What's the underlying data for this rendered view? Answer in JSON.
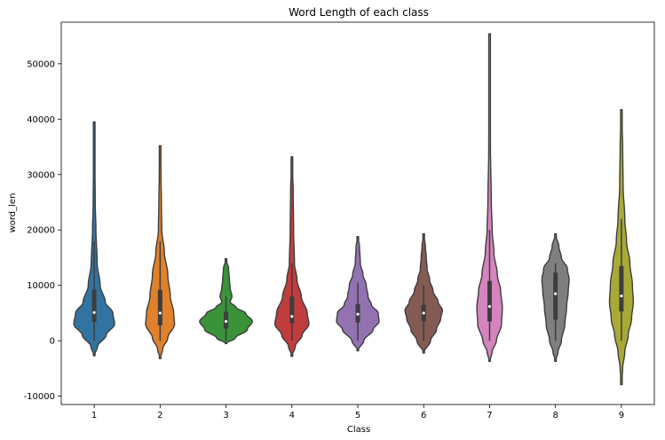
{
  "chart_data": {
    "type": "violin",
    "title": "Word Length of each class",
    "xlabel": "Class",
    "ylabel": "word_len",
    "ylim": [
      -11500,
      57500
    ],
    "yticks": [
      -10000,
      0,
      10000,
      20000,
      30000,
      40000,
      50000
    ],
    "grid": false,
    "categories": [
      "1",
      "2",
      "3",
      "4",
      "5",
      "6",
      "7",
      "8",
      "9"
    ],
    "colors": [
      "#3274a1",
      "#e1812c",
      "#3a923a",
      "#c03d3e",
      "#9372b2",
      "#845b53",
      "#d684bd",
      "#7f7f7f",
      "#a9aa35"
    ],
    "series": [
      {
        "category": "1",
        "min": -2700,
        "max": 39500,
        "q1": 3400,
        "median": 5100,
        "q3": 9200,
        "whisker_low": 0,
        "whisker_high": 18000,
        "profile": [
          [
            -2700,
            0
          ],
          [
            -1000,
            4
          ],
          [
            1000,
            14
          ],
          [
            3000,
            24
          ],
          [
            5000,
            22
          ],
          [
            7000,
            13
          ],
          [
            10000,
            7
          ],
          [
            14000,
            3.5
          ],
          [
            20000,
            2
          ],
          [
            25000,
            1.2
          ],
          [
            33000,
            0.8
          ],
          [
            39500,
            0
          ]
        ]
      },
      {
        "category": "2",
        "min": -3200,
        "max": 35200,
        "q1": 2800,
        "median": 5000,
        "q3": 9200,
        "whisker_low": 0,
        "whisker_high": 18000,
        "profile": [
          [
            -3200,
            0
          ],
          [
            -1500,
            3
          ],
          [
            500,
            9
          ],
          [
            3000,
            17
          ],
          [
            5000,
            16
          ],
          [
            8000,
            12
          ],
          [
            12000,
            9
          ],
          [
            16000,
            5
          ],
          [
            20000,
            2
          ],
          [
            25000,
            1.5
          ],
          [
            30000,
            1
          ],
          [
            35200,
            0
          ]
        ]
      },
      {
        "category": "3",
        "min": -500,
        "max": 14800,
        "q1": 2200,
        "median": 3500,
        "q3": 5200,
        "whisker_low": 0,
        "whisker_high": 8000,
        "profile": [
          [
            -500,
            0
          ],
          [
            500,
            11
          ],
          [
            2000,
            25
          ],
          [
            3500,
            31
          ],
          [
            5000,
            23
          ],
          [
            6000,
            12
          ],
          [
            7000,
            5
          ],
          [
            8000,
            7
          ],
          [
            9500,
            5
          ],
          [
            11000,
            4
          ],
          [
            13000,
            3
          ],
          [
            14800,
            0
          ]
        ]
      },
      {
        "category": "4",
        "min": -2800,
        "max": 33200,
        "q1": 3200,
        "median": 4400,
        "q3": 8000,
        "whisker_low": 0,
        "whisker_high": 14000,
        "profile": [
          [
            -2800,
            0
          ],
          [
            -1000,
            4
          ],
          [
            1000,
            12
          ],
          [
            3000,
            20
          ],
          [
            5000,
            18
          ],
          [
            8000,
            11
          ],
          [
            11000,
            6
          ],
          [
            14000,
            3
          ],
          [
            20000,
            2
          ],
          [
            27000,
            1.5
          ],
          [
            33200,
            0
          ]
        ]
      },
      {
        "category": "5",
        "min": -1800,
        "max": 18800,
        "q1": 3300,
        "median": 4800,
        "q3": 6600,
        "whisker_low": 0,
        "whisker_high": 10500,
        "profile": [
          [
            -1800,
            0
          ],
          [
            0,
            7
          ],
          [
            2000,
            18
          ],
          [
            3500,
            25
          ],
          [
            5000,
            24
          ],
          [
            6500,
            16
          ],
          [
            8000,
            12
          ],
          [
            10000,
            10
          ],
          [
            12000,
            6
          ],
          [
            14000,
            3
          ],
          [
            17000,
            2
          ],
          [
            18800,
            0
          ]
        ]
      },
      {
        "category": "6",
        "min": -2200,
        "max": 19300,
        "q1": 3500,
        "median": 5000,
        "q3": 6500,
        "whisker_low": 0,
        "whisker_high": 10000,
        "profile": [
          [
            -2200,
            0
          ],
          [
            0,
            8
          ],
          [
            2000,
            15
          ],
          [
            4000,
            20
          ],
          [
            5500,
            22
          ],
          [
            7000,
            17
          ],
          [
            9000,
            11
          ],
          [
            11000,
            7
          ],
          [
            13000,
            4
          ],
          [
            15000,
            3
          ],
          [
            17000,
            2
          ],
          [
            19300,
            0
          ]
        ]
      },
      {
        "category": "7",
        "min": -3700,
        "max": 55400,
        "q1": 3500,
        "median": 6200,
        "q3": 10800,
        "whisker_low": 0,
        "whisker_high": 20000,
        "profile": [
          [
            -3700,
            0
          ],
          [
            -2000,
            3
          ],
          [
            0,
            8
          ],
          [
            3000,
            14
          ],
          [
            6000,
            15
          ],
          [
            9000,
            13
          ],
          [
            12000,
            9
          ],
          [
            16000,
            5
          ],
          [
            20000,
            3
          ],
          [
            25000,
            2
          ],
          [
            35000,
            1
          ],
          [
            45000,
            0.8
          ],
          [
            55400,
            0
          ]
        ]
      },
      {
        "category": "8",
        "min": -3700,
        "max": 19300,
        "q1": 3800,
        "median": 8500,
        "q3": 12300,
        "whisker_low": 0,
        "whisker_high": 14000,
        "profile": [
          [
            -3700,
            0
          ],
          [
            -2000,
            3
          ],
          [
            0,
            7
          ],
          [
            3000,
            11
          ],
          [
            6000,
            13
          ],
          [
            9000,
            15
          ],
          [
            11000,
            16
          ],
          [
            13000,
            14
          ],
          [
            15000,
            7
          ],
          [
            17000,
            4
          ],
          [
            19300,
            0
          ]
        ]
      },
      {
        "category": "9",
        "min": -7900,
        "max": 41700,
        "q1": 5300,
        "median": 8100,
        "q3": 13500,
        "whisker_low": 0,
        "whisker_high": 22000,
        "profile": [
          [
            -7900,
            0
          ],
          [
            -5000,
            1.5
          ],
          [
            -2000,
            4
          ],
          [
            1000,
            8
          ],
          [
            4000,
            12
          ],
          [
            7000,
            14
          ],
          [
            10000,
            13
          ],
          [
            14000,
            10
          ],
          [
            18000,
            6
          ],
          [
            22000,
            4
          ],
          [
            28000,
            2
          ],
          [
            35000,
            1.5
          ],
          [
            41700,
            0
          ]
        ]
      }
    ]
  }
}
